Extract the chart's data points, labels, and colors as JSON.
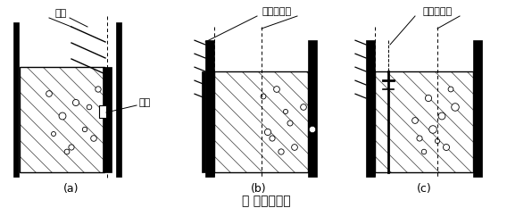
{
  "title": "图 施工缝构造",
  "background_color": "#ffffff",
  "label_a": "(a)",
  "label_b": "(b)",
  "label_c": "(c)",
  "ann_gangji": "钢筋",
  "ann_liucao": "留槽",
  "ann_b": "外贴止水带",
  "ann_c": "中埋止水带",
  "circles_a": [
    [
      55,
      105
    ],
    [
      70,
      130
    ],
    [
      60,
      150
    ],
    [
      80,
      165
    ],
    [
      100,
      120
    ],
    [
      95,
      145
    ],
    [
      75,
      170
    ],
    [
      110,
      100
    ],
    [
      105,
      155
    ],
    [
      85,
      115
    ]
  ],
  "circles_b": [
    [
      310,
      100
    ],
    [
      320,
      125
    ],
    [
      300,
      148
    ],
    [
      330,
      165
    ],
    [
      340,
      120
    ],
    [
      315,
      170
    ],
    [
      295,
      108
    ],
    [
      350,
      145
    ],
    [
      305,
      155
    ],
    [
      325,
      138
    ]
  ],
  "circles_c": [
    [
      480,
      110
    ],
    [
      495,
      130
    ],
    [
      470,
      155
    ],
    [
      500,
      165
    ],
    [
      510,
      120
    ],
    [
      485,
      145
    ],
    [
      475,
      170
    ],
    [
      505,
      100
    ],
    [
      490,
      158
    ],
    [
      465,
      135
    ]
  ]
}
